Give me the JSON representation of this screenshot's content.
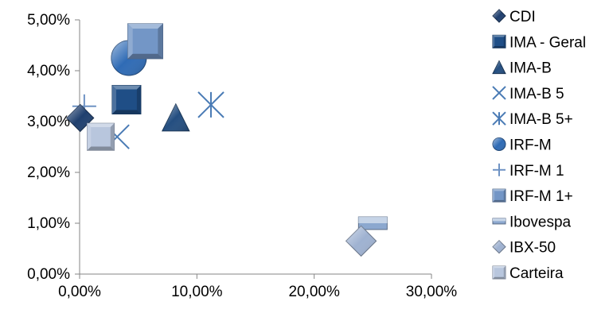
{
  "chart_data": {
    "type": "scatter",
    "title": "",
    "xlabel": "",
    "ylabel": "",
    "xlim": [
      0,
      30
    ],
    "ylim": [
      0,
      5
    ],
    "x_ticks": [
      "0,00%",
      "10,00%",
      "20,00%",
      "30,00%"
    ],
    "y_ticks": [
      "0,00%",
      "1,00%",
      "2,00%",
      "3,00%",
      "4,00%",
      "5,00%"
    ],
    "legend_position": "right",
    "grid": false,
    "series": [
      {
        "name": "CDI",
        "marker": "diamond",
        "color": "#1F3F6E",
        "points": [
          {
            "x": 0.05,
            "y": 3.07
          }
        ]
      },
      {
        "name": "IMA - Geral",
        "marker": "square",
        "color": "#1F4E86",
        "points": [
          {
            "x": 4.0,
            "y": 3.43
          }
        ]
      },
      {
        "name": "IMA-B",
        "marker": "triangle",
        "color": "#244E80",
        "points": [
          {
            "x": 8.2,
            "y": 3.08
          }
        ]
      },
      {
        "name": "IMA-B 5",
        "marker": "x",
        "color": "#4A7BB5",
        "points": [
          {
            "x": 3.2,
            "y": 2.7
          }
        ]
      },
      {
        "name": "IMA-B 5+",
        "marker": "star",
        "color": "#4A7BB5",
        "points": [
          {
            "x": 11.2,
            "y": 3.33
          }
        ]
      },
      {
        "name": "IRF-M",
        "marker": "circle",
        "color": "#2F6BB5",
        "points": [
          {
            "x": 4.2,
            "y": 4.25
          }
        ]
      },
      {
        "name": "IRF-M 1",
        "marker": "plus",
        "color": "#6F93C4",
        "points": [
          {
            "x": 0.4,
            "y": 3.3
          }
        ]
      },
      {
        "name": "IRF-M 1+",
        "marker": "square",
        "color": "#7396C6",
        "points": [
          {
            "x": 5.6,
            "y": 4.58
          }
        ]
      },
      {
        "name": "Ibovespa",
        "marker": "dash",
        "color": "#8CA8CF",
        "points": [
          {
            "x": 25.0,
            "y": 1.0
          }
        ]
      },
      {
        "name": "IBX-50",
        "marker": "diamond",
        "color": "#9FB2D1",
        "points": [
          {
            "x": 24.0,
            "y": 0.65
          }
        ]
      },
      {
        "name": "Carteira",
        "marker": "square",
        "color": "#B8C6DD",
        "points": [
          {
            "x": 1.8,
            "y": 2.7
          }
        ]
      }
    ]
  }
}
